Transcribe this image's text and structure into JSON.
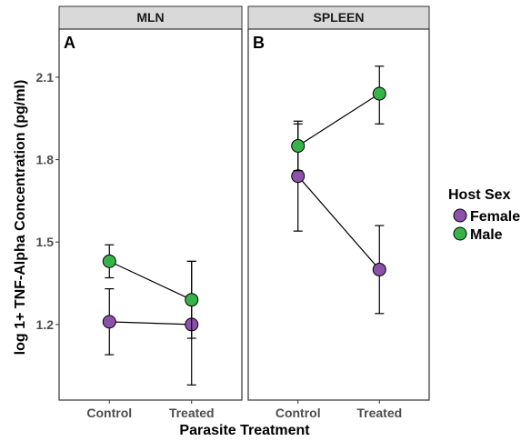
{
  "chart_data": {
    "type": "line",
    "xlabel": "Parasite Treatment",
    "ylabel": "log 1+ TNF-Alpha Concentration (pg/ml)",
    "categories": [
      "Control",
      "Treated"
    ],
    "ylim": [
      0.925,
      2.275
    ],
    "yticks": [
      1.2,
      1.5,
      1.8,
      2.1
    ],
    "grid": false,
    "legend": {
      "title": "Host Sex",
      "position": "right",
      "items": [
        {
          "name": "Female",
          "color": "#8c52a9"
        },
        {
          "name": "Male",
          "color": "#37b34a"
        }
      ]
    },
    "panels": [
      {
        "strip": "MLN",
        "letter": "A",
        "series": [
          {
            "name": "Female",
            "color": "#8c52a9",
            "values": [
              1.21,
              1.2
            ],
            "lower": [
              1.09,
              0.98
            ],
            "upper": [
              1.33,
              1.43
            ]
          },
          {
            "name": "Male",
            "color": "#37b34a",
            "values": [
              1.43,
              1.29
            ],
            "lower": [
              1.37,
              1.15
            ],
            "upper": [
              1.49,
              1.43
            ]
          }
        ]
      },
      {
        "strip": "SPLEEN",
        "letter": "B",
        "series": [
          {
            "name": "Female",
            "color": "#8c52a9",
            "values": [
              1.74,
              1.4
            ],
            "lower": [
              1.54,
              1.24
            ],
            "upper": [
              1.93,
              1.56
            ]
          },
          {
            "name": "Male",
            "color": "#37b34a",
            "values": [
              1.85,
              2.04
            ],
            "lower": [
              1.76,
              1.93
            ],
            "upper": [
              1.94,
              2.14
            ]
          }
        ]
      }
    ]
  }
}
